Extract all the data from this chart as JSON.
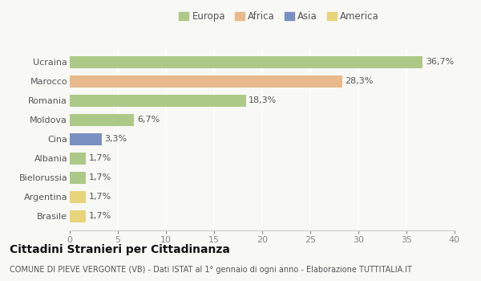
{
  "categories": [
    "Ucraina",
    "Marocco",
    "Romania",
    "Moldova",
    "Cina",
    "Albania",
    "Bielorussia",
    "Argentina",
    "Brasile"
  ],
  "values": [
    36.7,
    28.3,
    18.3,
    6.7,
    3.3,
    1.7,
    1.7,
    1.7,
    1.7
  ],
  "labels": [
    "36,7%",
    "28,3%",
    "18,3%",
    "6,7%",
    "3,3%",
    "1,7%",
    "1,7%",
    "1,7%",
    "1,7%"
  ],
  "colors": [
    "#adc988",
    "#e8b98a",
    "#adc988",
    "#adc988",
    "#7a90c0",
    "#adc988",
    "#adc988",
    "#e8d47a",
    "#e8d47a"
  ],
  "legend_labels": [
    "Europa",
    "Africa",
    "Asia",
    "America"
  ],
  "legend_colors": [
    "#adc988",
    "#e8b98a",
    "#7a90c0",
    "#e8d47a"
  ],
  "xlim": [
    0,
    40
  ],
  "xticks": [
    0,
    5,
    10,
    15,
    20,
    25,
    30,
    35,
    40
  ],
  "title": "Cittadini Stranieri per Cittadinanza",
  "subtitle": "COMUNE DI PIEVE VERGONTE (VB) - Dati ISTAT al 1° gennaio di ogni anno - Elaborazione TUTTITALIA.IT",
  "background_color": "#f8f8f5",
  "bar_height": 0.62,
  "label_fontsize": 8,
  "ytick_fontsize": 8,
  "xtick_fontsize": 8,
  "title_fontsize": 10,
  "subtitle_fontsize": 7
}
